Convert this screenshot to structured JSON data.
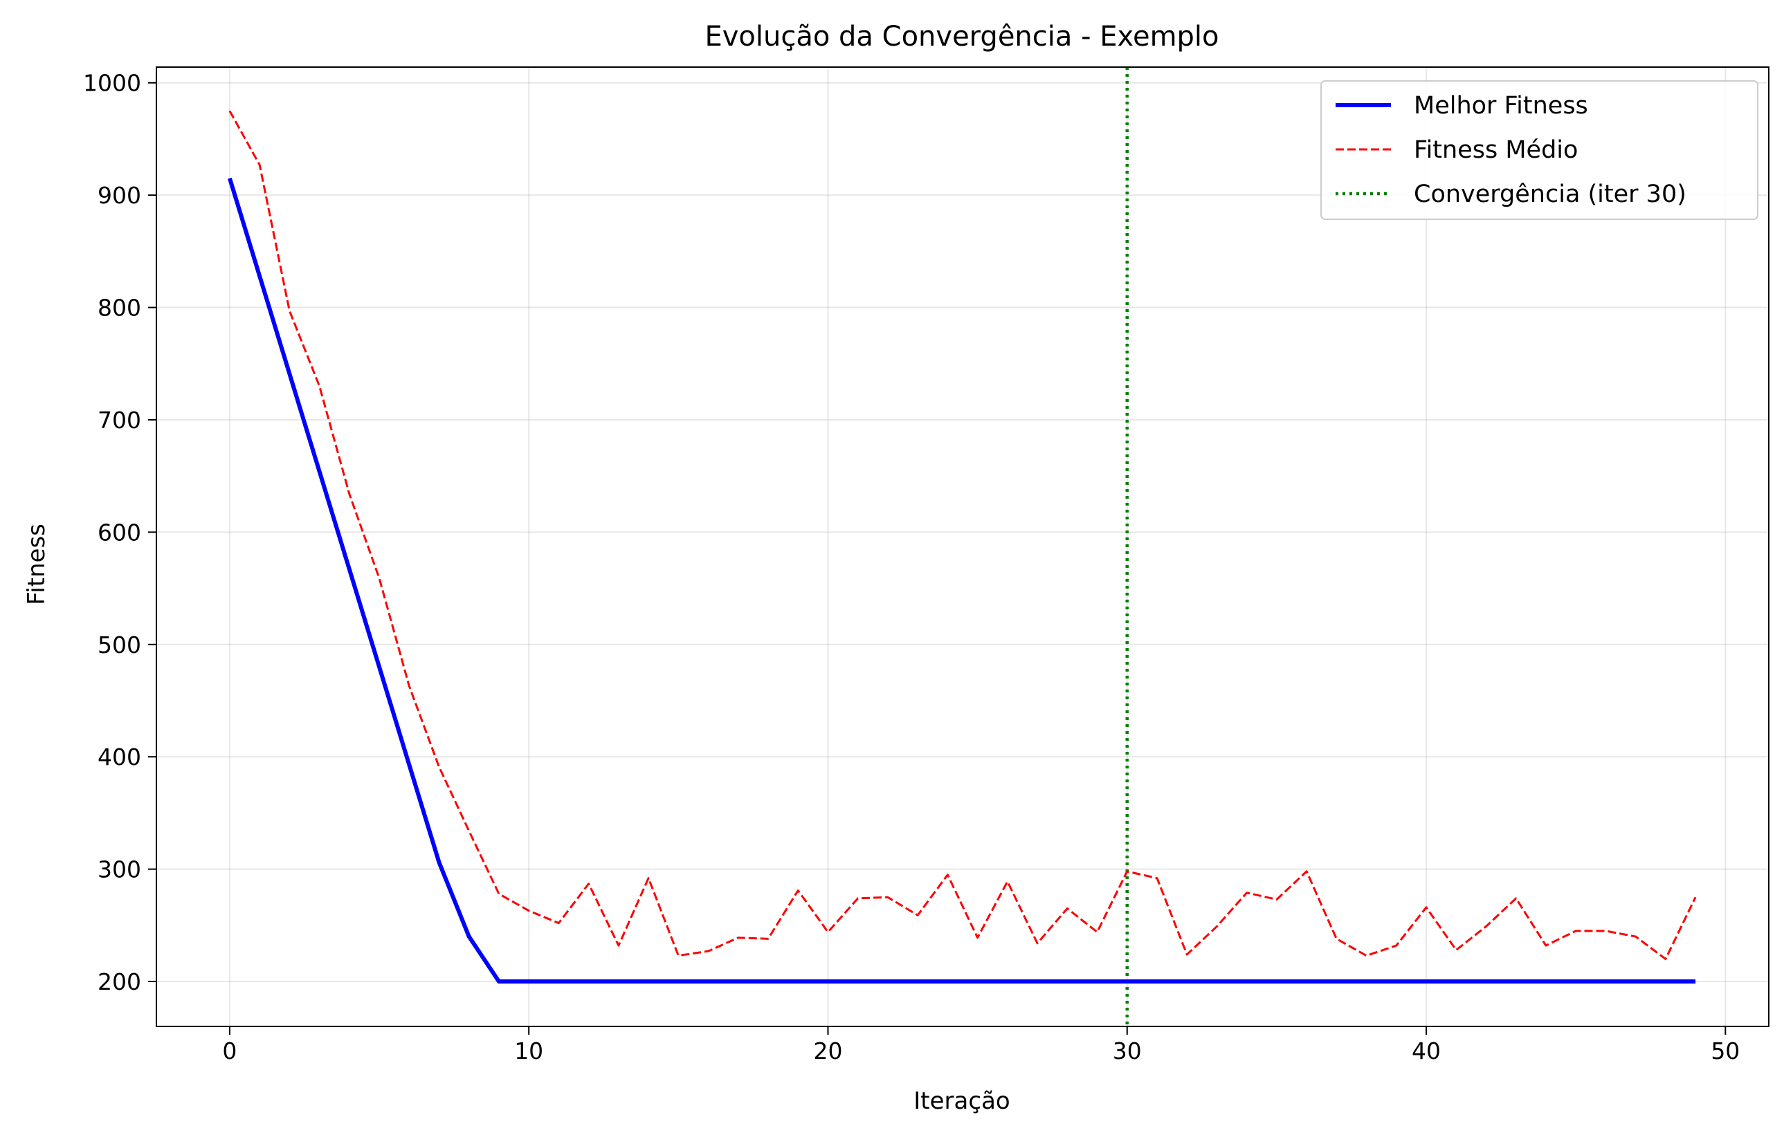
{
  "chart_data": {
    "type": "line",
    "title": "Evolução da Convergência - Exemplo",
    "xlabel": "Iteração",
    "ylabel": "Fitness",
    "xlim": [
      -2.45,
      51.45
    ],
    "ylim": [
      160,
      1014
    ],
    "xticks": [
      0,
      10,
      20,
      30,
      40,
      50
    ],
    "yticks": [
      200,
      300,
      400,
      500,
      600,
      700,
      800,
      900,
      1000
    ],
    "grid": true,
    "legend": "top-right",
    "x": [
      0,
      1,
      2,
      3,
      4,
      5,
      6,
      7,
      8,
      9,
      10,
      11,
      12,
      13,
      14,
      15,
      16,
      17,
      18,
      19,
      20,
      21,
      22,
      23,
      24,
      25,
      26,
      27,
      28,
      29,
      30,
      31,
      32,
      33,
      34,
      35,
      36,
      37,
      38,
      39,
      40,
      41,
      42,
      43,
      44,
      45,
      46,
      47,
      48,
      49
    ],
    "series": [
      {
        "name": "Melhor Fitness",
        "color": "#0000ff",
        "style": "solid",
        "values": [
          915,
          828,
          741,
          654,
          567,
          480,
          393,
          306,
          240,
          200,
          200,
          200,
          200,
          200,
          200,
          200,
          200,
          200,
          200,
          200,
          200,
          200,
          200,
          200,
          200,
          200,
          200,
          200,
          200,
          200,
          200,
          200,
          200,
          200,
          200,
          200,
          200,
          200,
          200,
          200,
          200,
          200,
          200,
          200,
          200,
          200,
          200,
          200,
          200,
          200
        ],
        "x_override": [
          0,
          1,
          2,
          3,
          4,
          5,
          6,
          7,
          8,
          9,
          10,
          11,
          12,
          13,
          14,
          15,
          16,
          17,
          18,
          19,
          20,
          21,
          22,
          23,
          24,
          25,
          26,
          27,
          28,
          29,
          30,
          31,
          32,
          33,
          34,
          35,
          36,
          37,
          38,
          39,
          40,
          41,
          42,
          43,
          44,
          45,
          46,
          47,
          48,
          49
        ]
      },
      {
        "name": "Fitness Médio",
        "color": "#ff0000",
        "style": "dashed",
        "values": [
          975,
          927,
          797,
          730,
          634,
          559,
          463,
          391,
          334,
          278,
          263,
          252,
          287,
          232,
          292,
          223,
          227,
          239,
          238,
          281,
          244,
          274,
          275,
          259,
          295,
          239,
          289,
          234,
          265,
          244,
          298,
          292,
          224,
          249,
          279,
          273,
          298,
          238,
          223,
          232,
          266,
          228,
          249,
          274,
          232,
          245,
          245,
          240,
          220,
          275
        ]
      }
    ],
    "vlines": [
      {
        "name": "Convergência (iter 30)",
        "x": 30,
        "color": "#008000",
        "style": "dotted"
      }
    ]
  }
}
